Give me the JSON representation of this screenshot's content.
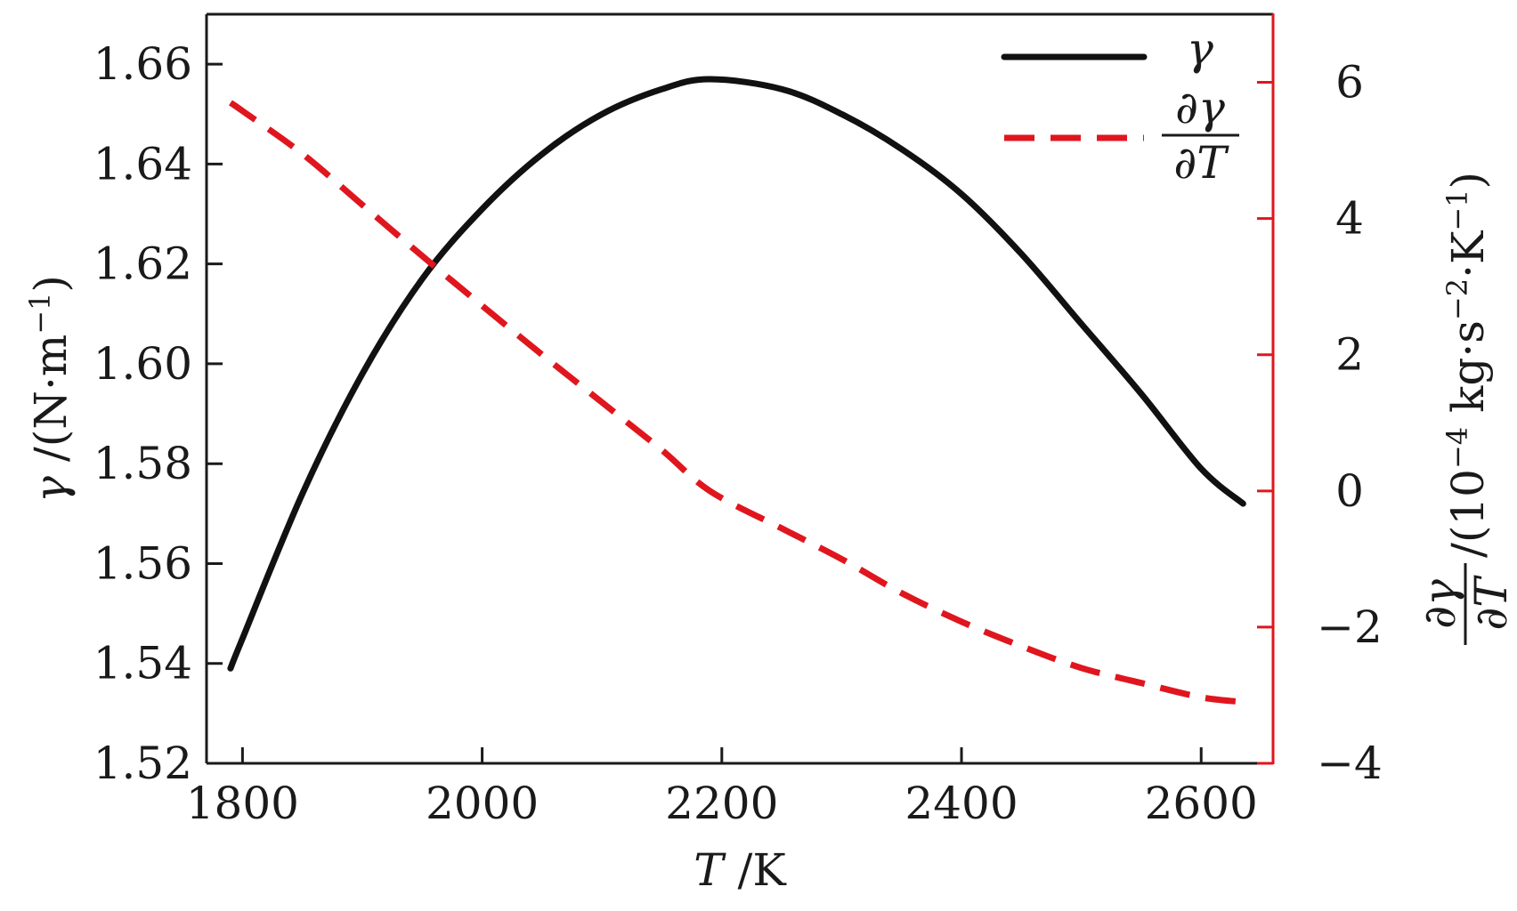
{
  "chart_data": {
    "type": "line",
    "title": "",
    "x": [
      1790,
      1800,
      1850,
      1900,
      1950,
      2000,
      2050,
      2100,
      2150,
      2190,
      2250,
      2300,
      2350,
      2400,
      2450,
      2500,
      2550,
      2600,
      2635
    ],
    "xlim": [
      1770,
      2660
    ],
    "xticks": [
      1800,
      2000,
      2200,
      2400,
      2600
    ],
    "xtick_labels": [
      "1800",
      "2000",
      "2200",
      "2400",
      "2600"
    ],
    "xlabel": {
      "symbol": "T",
      "unit": "/K"
    },
    "y_left": {
      "ylim": [
        1.52,
        1.67
      ],
      "yticks": [
        1.52,
        1.54,
        1.56,
        1.58,
        1.6,
        1.62,
        1.64,
        1.66
      ],
      "ytick_labels": [
        "1.52",
        "1.54",
        "1.56",
        "1.58",
        "1.60",
        "1.62",
        "1.64",
        "1.66"
      ],
      "ylabel": {
        "symbol": "γ",
        "unit": "/(N·m",
        "exp": "−1",
        "close": ")"
      },
      "color": "#000000"
    },
    "y_right": {
      "ylim": [
        -4,
        7
      ],
      "yticks": [
        -4,
        -2,
        0,
        2,
        4,
        6
      ],
      "ytick_labels": [
        "−4",
        "−2",
        "0",
        "2",
        "4",
        "6"
      ],
      "ylabel": {
        "num": "∂γ",
        "den": "∂T",
        "unit_prefix": "/(10",
        "exp1": "−4",
        "mid": " kg·s",
        "exp2": "−2",
        "mid2": "·K",
        "exp3": "−1",
        "close": ")"
      },
      "color": "#e0161e"
    },
    "series": [
      {
        "name": "γ",
        "axis": "left",
        "style": "solid",
        "color": "#111111",
        "values": [
          1.539,
          1.545,
          1.574,
          1.598,
          1.617,
          1.631,
          1.642,
          1.65,
          1.655,
          1.657,
          1.655,
          1.65,
          1.643,
          1.634,
          1.622,
          1.608,
          1.594,
          1.579,
          1.572
        ]
      },
      {
        "name": "∂γ/∂T",
        "axis": "right",
        "style": "dashed",
        "color": "#e0161e",
        "values": [
          5.7,
          5.58,
          4.95,
          4.2,
          3.45,
          2.72,
          2.0,
          1.3,
          0.6,
          0.0,
          -0.55,
          -1.0,
          -1.5,
          -1.92,
          -2.28,
          -2.6,
          -2.82,
          -3.03,
          -3.1
        ]
      }
    ],
    "legend": {
      "position": "top-right",
      "entries": [
        {
          "label": "γ"
        },
        {
          "num": "∂γ",
          "den": "∂T"
        }
      ]
    }
  }
}
